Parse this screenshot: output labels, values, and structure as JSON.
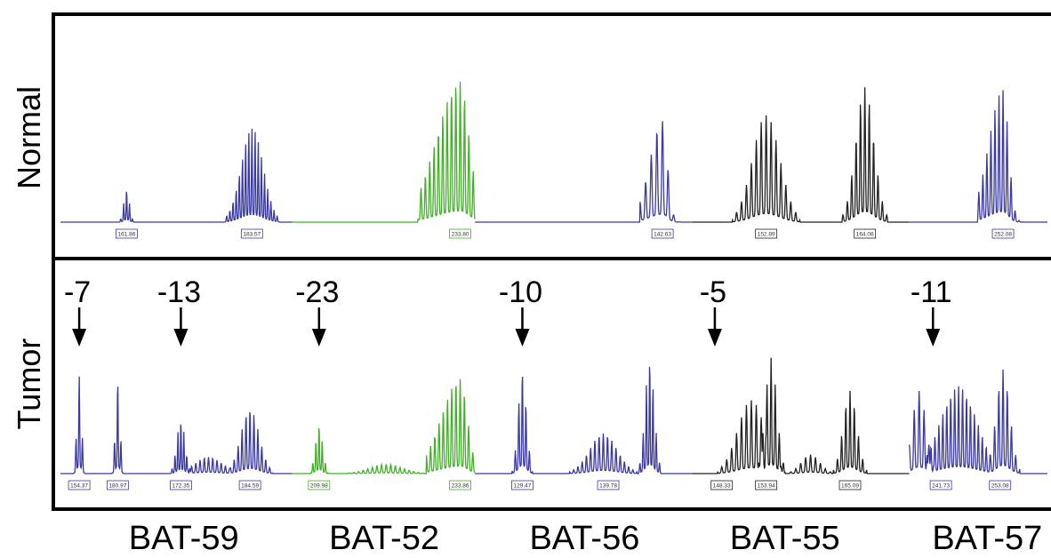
{
  "chart_data": {
    "type": "line",
    "description_free": true,
    "colors": {
      "blue": "#3a3aa0",
      "green": "#44b02a",
      "black": "#222222"
    },
    "panels": [
      {
        "label": "Normal",
        "traces": [
          {
            "color": "blue",
            "from": 0.0,
            "to": 0.235,
            "peaks": [
              {
                "c": 0.067,
                "h": 0.24,
                "w": 0.012,
                "n": 4
              },
              {
                "c": 0.194,
                "h": 0.68,
                "w": 0.048,
                "n": 15
              }
            ]
          },
          {
            "color": "green",
            "from": 0.235,
            "to": 0.42,
            "peaks": [
              {
                "c": 0.405,
                "h": 1.0,
                "w": 0.075,
                "n": 17,
                "skew": 1
              }
            ]
          },
          {
            "color": "blue",
            "from": 0.42,
            "to": 0.64,
            "peaks": [
              {
                "c": 0.61,
                "h": 0.72,
                "w": 0.04,
                "n": 7,
                "skew": 1
              }
            ]
          },
          {
            "color": "black",
            "from": 0.64,
            "to": 0.86,
            "peaks": [
              {
                "c": 0.715,
                "h": 0.76,
                "w": 0.06,
                "n": 12
              },
              {
                "c": 0.815,
                "h": 0.96,
                "w": 0.04,
                "n": 9
              }
            ]
          },
          {
            "color": "blue",
            "from": 0.86,
            "to": 1.0,
            "peaks": [
              {
                "c": 0.955,
                "h": 0.94,
                "w": 0.045,
                "n": 11,
                "skew": 1
              }
            ]
          }
        ],
        "size_labels": [
          {
            "pos": 0.067,
            "text": "161.86",
            "color": "blue"
          },
          {
            "pos": 0.194,
            "text": "183.57",
            "color": "blue"
          },
          {
            "pos": 0.405,
            "text": "233.80",
            "color": "green"
          },
          {
            "pos": 0.61,
            "text": "142.63",
            "color": "blue"
          },
          {
            "pos": 0.715,
            "text": "152.89",
            "color": "black"
          },
          {
            "pos": 0.815,
            "text": "164.08",
            "color": "black"
          },
          {
            "pos": 0.955,
            "text": "252.08",
            "color": "blue"
          }
        ]
      },
      {
        "label": "Tumor",
        "traces": [
          {
            "color": "blue",
            "from": 0.0,
            "to": 0.235,
            "peaks": [
              {
                "c": 0.019,
                "h": 0.84,
                "w": 0.01,
                "n": 3
              },
              {
                "c": 0.058,
                "h": 0.8,
                "w": 0.01,
                "n": 3
              },
              {
                "c": 0.122,
                "h": 0.46,
                "w": 0.018,
                "n": 6
              },
              {
                "c": 0.192,
                "h": 0.55,
                "w": 0.04,
                "n": 10
              },
              {
                "c": 0.15,
                "h": 0.14,
                "w": 0.06,
                "n": 14
              }
            ]
          },
          {
            "color": "green",
            "from": 0.235,
            "to": 0.42,
            "peaks": [
              {
                "c": 0.262,
                "h": 0.42,
                "w": 0.016,
                "n": 5
              },
              {
                "c": 0.405,
                "h": 0.8,
                "w": 0.06,
                "n": 14,
                "skew": 1
              },
              {
                "c": 0.33,
                "h": 0.08,
                "w": 0.07,
                "n": 15
              }
            ]
          },
          {
            "color": "blue",
            "from": 0.42,
            "to": 0.64,
            "peaks": [
              {
                "c": 0.468,
                "h": 0.88,
                "w": 0.018,
                "n": 5
              },
              {
                "c": 0.55,
                "h": 0.34,
                "w": 0.06,
                "n": 14
              },
              {
                "c": 0.597,
                "h": 0.98,
                "w": 0.02,
                "n": 6
              }
            ]
          },
          {
            "color": "black",
            "from": 0.64,
            "to": 0.86,
            "peaks": [
              {
                "c": 0.7,
                "h": 0.62,
                "w": 0.06,
                "n": 12
              },
              {
                "c": 0.72,
                "h": 0.98,
                "w": 0.025,
                "n": 6
              },
              {
                "c": 0.8,
                "h": 0.7,
                "w": 0.03,
                "n": 7
              },
              {
                "c": 0.76,
                "h": 0.16,
                "w": 0.04,
                "n": 8
              }
            ]
          },
          {
            "color": "blue",
            "from": 0.86,
            "to": 1.0,
            "peaks": [
              {
                "c": 0.91,
                "h": 0.74,
                "w": 0.08,
                "n": 20
              },
              {
                "c": 0.955,
                "h": 0.88,
                "w": 0.03,
                "n": 7
              },
              {
                "c": 0.87,
                "h": 0.7,
                "w": 0.03,
                "n": 6
              }
            ]
          }
        ],
        "size_labels": [
          {
            "pos": 0.019,
            "text": "154.37",
            "color": "blue"
          },
          {
            "pos": 0.058,
            "text": "180.97",
            "color": "blue"
          },
          {
            "pos": 0.122,
            "text": "172.35",
            "color": "blue"
          },
          {
            "pos": 0.192,
            "text": "184.59",
            "color": "blue"
          },
          {
            "pos": 0.262,
            "text": "209.98",
            "color": "green"
          },
          {
            "pos": 0.405,
            "text": "233.86",
            "color": "green"
          },
          {
            "pos": 0.468,
            "text": "129.47",
            "color": "blue"
          },
          {
            "pos": 0.555,
            "text": "139.78",
            "color": "blue"
          },
          {
            "pos": 0.67,
            "text": "148.33",
            "color": "black"
          },
          {
            "pos": 0.715,
            "text": "153.94",
            "color": "black"
          },
          {
            "pos": 0.8,
            "text": "165.09",
            "color": "black"
          },
          {
            "pos": 0.892,
            "text": "241.73",
            "color": "blue"
          },
          {
            "pos": 0.952,
            "text": "253.08",
            "color": "blue"
          }
        ],
        "shifts": [
          {
            "pos": 0.019,
            "text": "-7"
          },
          {
            "pos": 0.122,
            "text": "-13"
          },
          {
            "pos": 0.262,
            "text": "-23"
          },
          {
            "pos": 0.468,
            "text": "-10"
          },
          {
            "pos": 0.663,
            "text": "-5"
          },
          {
            "pos": 0.884,
            "text": "-11"
          }
        ]
      }
    ],
    "loci": [
      {
        "pos": 0.125,
        "text": "BAT-59"
      },
      {
        "pos": 0.328,
        "text": "BAT-52"
      },
      {
        "pos": 0.531,
        "text": "BAT-56"
      },
      {
        "pos": 0.734,
        "text": "BAT-55"
      },
      {
        "pos": 0.939,
        "text": "BAT-57"
      }
    ]
  }
}
